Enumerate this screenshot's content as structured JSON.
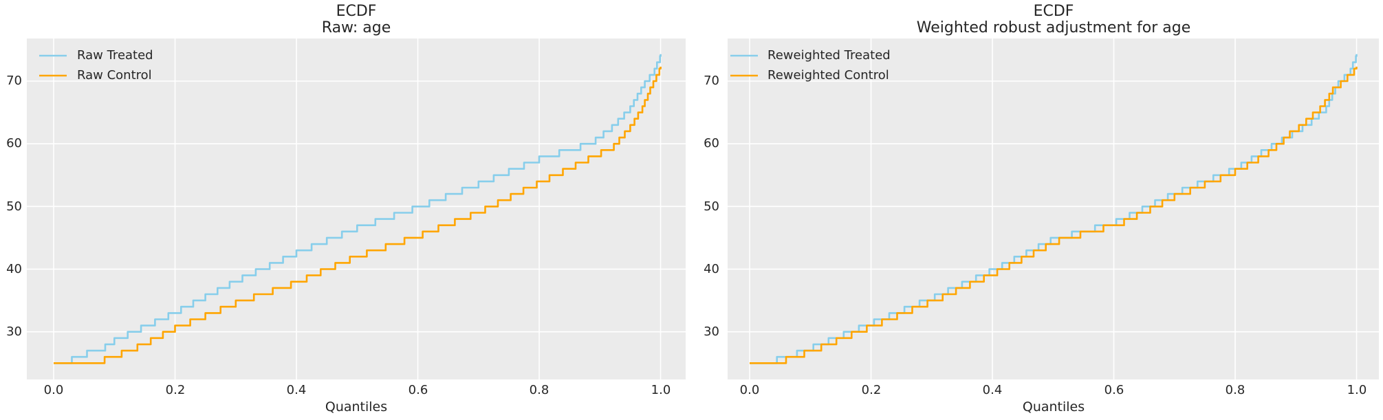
{
  "figure": {
    "background": "#ffffff",
    "axes_background": "#ebebeb",
    "grid_color": "#ffffff",
    "text_color": "#262626",
    "treated_color": "#87ceeb",
    "control_color": "#ffa500"
  },
  "chart_data": [
    {
      "type": "line",
      "subtype": "quantile-step",
      "title": "ECDF",
      "subtitle": "Raw: age",
      "xlabel": "Quantiles",
      "ylabel": "",
      "grid": true,
      "legend_position": "upper left",
      "x_ticks": [
        0.0,
        0.2,
        0.4,
        0.6,
        0.8,
        1.0
      ],
      "x_tick_labels": [
        "0.0",
        "0.2",
        "0.4",
        "0.6",
        "0.8",
        "1.0"
      ],
      "y_ticks": [
        30,
        40,
        50,
        60,
        70
      ],
      "y_tick_labels": [
        "30",
        "40",
        "50",
        "60",
        "70"
      ],
      "xlim": [
        -0.0442,
        1.0413
      ],
      "ylim": [
        22.4,
        76.8
      ],
      "series": [
        {
          "name": "Raw Treated",
          "color": "#87ceeb",
          "steps": [
            [
              0,
              25
            ],
            [
              0.03,
              26
            ],
            [
              0.055,
              27
            ],
            [
              0.085,
              28
            ],
            [
              0.1,
              29
            ],
            [
              0.122,
              30
            ],
            [
              0.144,
              31
            ],
            [
              0.167,
              32
            ],
            [
              0.189,
              33
            ],
            [
              0.21,
              34
            ],
            [
              0.23,
              35
            ],
            [
              0.25,
              36
            ],
            [
              0.27,
              37
            ],
            [
              0.29,
              38
            ],
            [
              0.311,
              39
            ],
            [
              0.333,
              40
            ],
            [
              0.356,
              41
            ],
            [
              0.378,
              42
            ],
            [
              0.4,
              43
            ],
            [
              0.425,
              44
            ],
            [
              0.45,
              45
            ],
            [
              0.475,
              46
            ],
            [
              0.5,
              47
            ],
            [
              0.53,
              48
            ],
            [
              0.561,
              49
            ],
            [
              0.591,
              50
            ],
            [
              0.619,
              51
            ],
            [
              0.646,
              52
            ],
            [
              0.673,
              53
            ],
            [
              0.7,
              54
            ],
            [
              0.725,
              55
            ],
            [
              0.75,
              56
            ],
            [
              0.775,
              57
            ],
            [
              0.8,
              58
            ],
            [
              0.833,
              59
            ],
            [
              0.868,
              60
            ],
            [
              0.893,
              61
            ],
            [
              0.906,
              62
            ],
            [
              0.92,
              63
            ],
            [
              0.93,
              64
            ],
            [
              0.94,
              65
            ],
            [
              0.95,
              66
            ],
            [
              0.956,
              67
            ],
            [
              0.962,
              68
            ],
            [
              0.968,
              69
            ],
            [
              0.974,
              70
            ],
            [
              0.982,
              71
            ],
            [
              0.99,
              72
            ],
            [
              0.994,
              73
            ],
            [
              0.999,
              74
            ],
            [
              1.0,
              74.3
            ]
          ]
        },
        {
          "name": "Raw Control",
          "color": "#ffa500",
          "steps": [
            [
              0,
              25
            ],
            [
              0.084,
              26
            ],
            [
              0.112,
              27
            ],
            [
              0.138,
              28
            ],
            [
              0.16,
              29
            ],
            [
              0.18,
              30
            ],
            [
              0.2,
              31
            ],
            [
              0.225,
              32
            ],
            [
              0.25,
              33
            ],
            [
              0.275,
              34
            ],
            [
              0.3,
              35
            ],
            [
              0.33,
              36
            ],
            [
              0.361,
              37
            ],
            [
              0.391,
              38
            ],
            [
              0.417,
              39
            ],
            [
              0.44,
              40
            ],
            [
              0.464,
              41
            ],
            [
              0.488,
              42
            ],
            [
              0.516,
              43
            ],
            [
              0.547,
              44
            ],
            [
              0.578,
              45
            ],
            [
              0.608,
              46
            ],
            [
              0.634,
              47
            ],
            [
              0.661,
              48
            ],
            [
              0.687,
              49
            ],
            [
              0.711,
              50
            ],
            [
              0.732,
              51
            ],
            [
              0.753,
              52
            ],
            [
              0.774,
              53
            ],
            [
              0.796,
              54
            ],
            [
              0.817,
              55
            ],
            [
              0.839,
              56
            ],
            [
              0.86,
              57
            ],
            [
              0.881,
              58
            ],
            [
              0.902,
              59
            ],
            [
              0.923,
              60
            ],
            [
              0.932,
              61
            ],
            [
              0.941,
              62
            ],
            [
              0.95,
              63
            ],
            [
              0.957,
              64
            ],
            [
              0.963,
              65
            ],
            [
              0.97,
              66
            ],
            [
              0.974,
              67
            ],
            [
              0.979,
              68
            ],
            [
              0.983,
              69
            ],
            [
              0.988,
              70
            ],
            [
              0.993,
              71
            ],
            [
              0.998,
              72
            ],
            [
              1.0,
              72.3
            ]
          ]
        }
      ]
    },
    {
      "type": "line",
      "subtype": "quantile-step",
      "title": "ECDF",
      "subtitle": "Weighted robust adjustment for age",
      "xlabel": "Quantiles",
      "ylabel": "",
      "grid": true,
      "legend_position": "upper left",
      "x_ticks": [
        0.0,
        0.2,
        0.4,
        0.6,
        0.8,
        1.0
      ],
      "x_tick_labels": [
        "0.0",
        "0.2",
        "0.4",
        "0.6",
        "0.8",
        "1.0"
      ],
      "y_ticks": [
        30,
        40,
        50,
        60,
        70
      ],
      "y_tick_labels": [
        "30",
        "40",
        "50",
        "60",
        "70"
      ],
      "xlim": [
        -0.0363,
        1.0368
      ],
      "ylim": [
        22.4,
        76.8
      ],
      "series": [
        {
          "name": "Reweighted Treated",
          "color": "#87ceeb",
          "steps": [
            [
              0,
              25
            ],
            [
              0.045,
              26
            ],
            [
              0.078,
              27
            ],
            [
              0.105,
              28
            ],
            [
              0.13,
              29
            ],
            [
              0.155,
              30
            ],
            [
              0.18,
              31
            ],
            [
              0.205,
              32
            ],
            [
              0.23,
              33
            ],
            [
              0.255,
              34
            ],
            [
              0.28,
              35
            ],
            [
              0.305,
              36
            ],
            [
              0.327,
              37
            ],
            [
              0.35,
              38
            ],
            [
              0.373,
              39
            ],
            [
              0.395,
              40
            ],
            [
              0.416,
              41
            ],
            [
              0.436,
              42
            ],
            [
              0.456,
              43
            ],
            [
              0.476,
              44
            ],
            [
              0.496,
              45
            ],
            [
              0.531,
              46
            ],
            [
              0.569,
              47
            ],
            [
              0.604,
              48
            ],
            [
              0.626,
              49
            ],
            [
              0.647,
              50
            ],
            [
              0.668,
              51
            ],
            [
              0.689,
              52
            ],
            [
              0.713,
              53
            ],
            [
              0.738,
              54
            ],
            [
              0.764,
              55
            ],
            [
              0.79,
              56
            ],
            [
              0.81,
              57
            ],
            [
              0.827,
              58
            ],
            [
              0.843,
              59
            ],
            [
              0.86,
              60
            ],
            [
              0.877,
              61
            ],
            [
              0.894,
              62
            ],
            [
              0.911,
              63
            ],
            [
              0.926,
              64
            ],
            [
              0.938,
              65
            ],
            [
              0.95,
              66
            ],
            [
              0.955,
              67
            ],
            [
              0.96,
              68
            ],
            [
              0.965,
              69
            ],
            [
              0.97,
              70
            ],
            [
              0.98,
              71
            ],
            [
              0.99,
              72
            ],
            [
              0.994,
              73
            ],
            [
              0.999,
              74
            ],
            [
              1.0,
              74.3
            ]
          ]
        },
        {
          "name": "Reweighted Control",
          "color": "#ffa500",
          "steps": [
            [
              0,
              25
            ],
            [
              0.06,
              26
            ],
            [
              0.09,
              27
            ],
            [
              0.118,
              28
            ],
            [
              0.143,
              29
            ],
            [
              0.168,
              30
            ],
            [
              0.193,
              31
            ],
            [
              0.218,
              32
            ],
            [
              0.243,
              33
            ],
            [
              0.268,
              34
            ],
            [
              0.293,
              35
            ],
            [
              0.318,
              36
            ],
            [
              0.34,
              37
            ],
            [
              0.363,
              38
            ],
            [
              0.386,
              39
            ],
            [
              0.408,
              40
            ],
            [
              0.428,
              41
            ],
            [
              0.448,
              42
            ],
            [
              0.468,
              43
            ],
            [
              0.488,
              44
            ],
            [
              0.51,
              45
            ],
            [
              0.545,
              46
            ],
            [
              0.583,
              47
            ],
            [
              0.617,
              48
            ],
            [
              0.638,
              49
            ],
            [
              0.66,
              50
            ],
            [
              0.68,
              51
            ],
            [
              0.7,
              52
            ],
            [
              0.726,
              53
            ],
            [
              0.75,
              54
            ],
            [
              0.776,
              55
            ],
            [
              0.8,
              56
            ],
            [
              0.82,
              57
            ],
            [
              0.838,
              58
            ],
            [
              0.855,
              59
            ],
            [
              0.868,
              60
            ],
            [
              0.88,
              61
            ],
            [
              0.89,
              62
            ],
            [
              0.905,
              63
            ],
            [
              0.917,
              64
            ],
            [
              0.928,
              65
            ],
            [
              0.94,
              66
            ],
            [
              0.948,
              67
            ],
            [
              0.955,
              68
            ],
            [
              0.961,
              69
            ],
            [
              0.974,
              70
            ],
            [
              0.985,
              71
            ],
            [
              0.996,
              72
            ],
            [
              1.0,
              72.3
            ]
          ]
        }
      ]
    }
  ]
}
